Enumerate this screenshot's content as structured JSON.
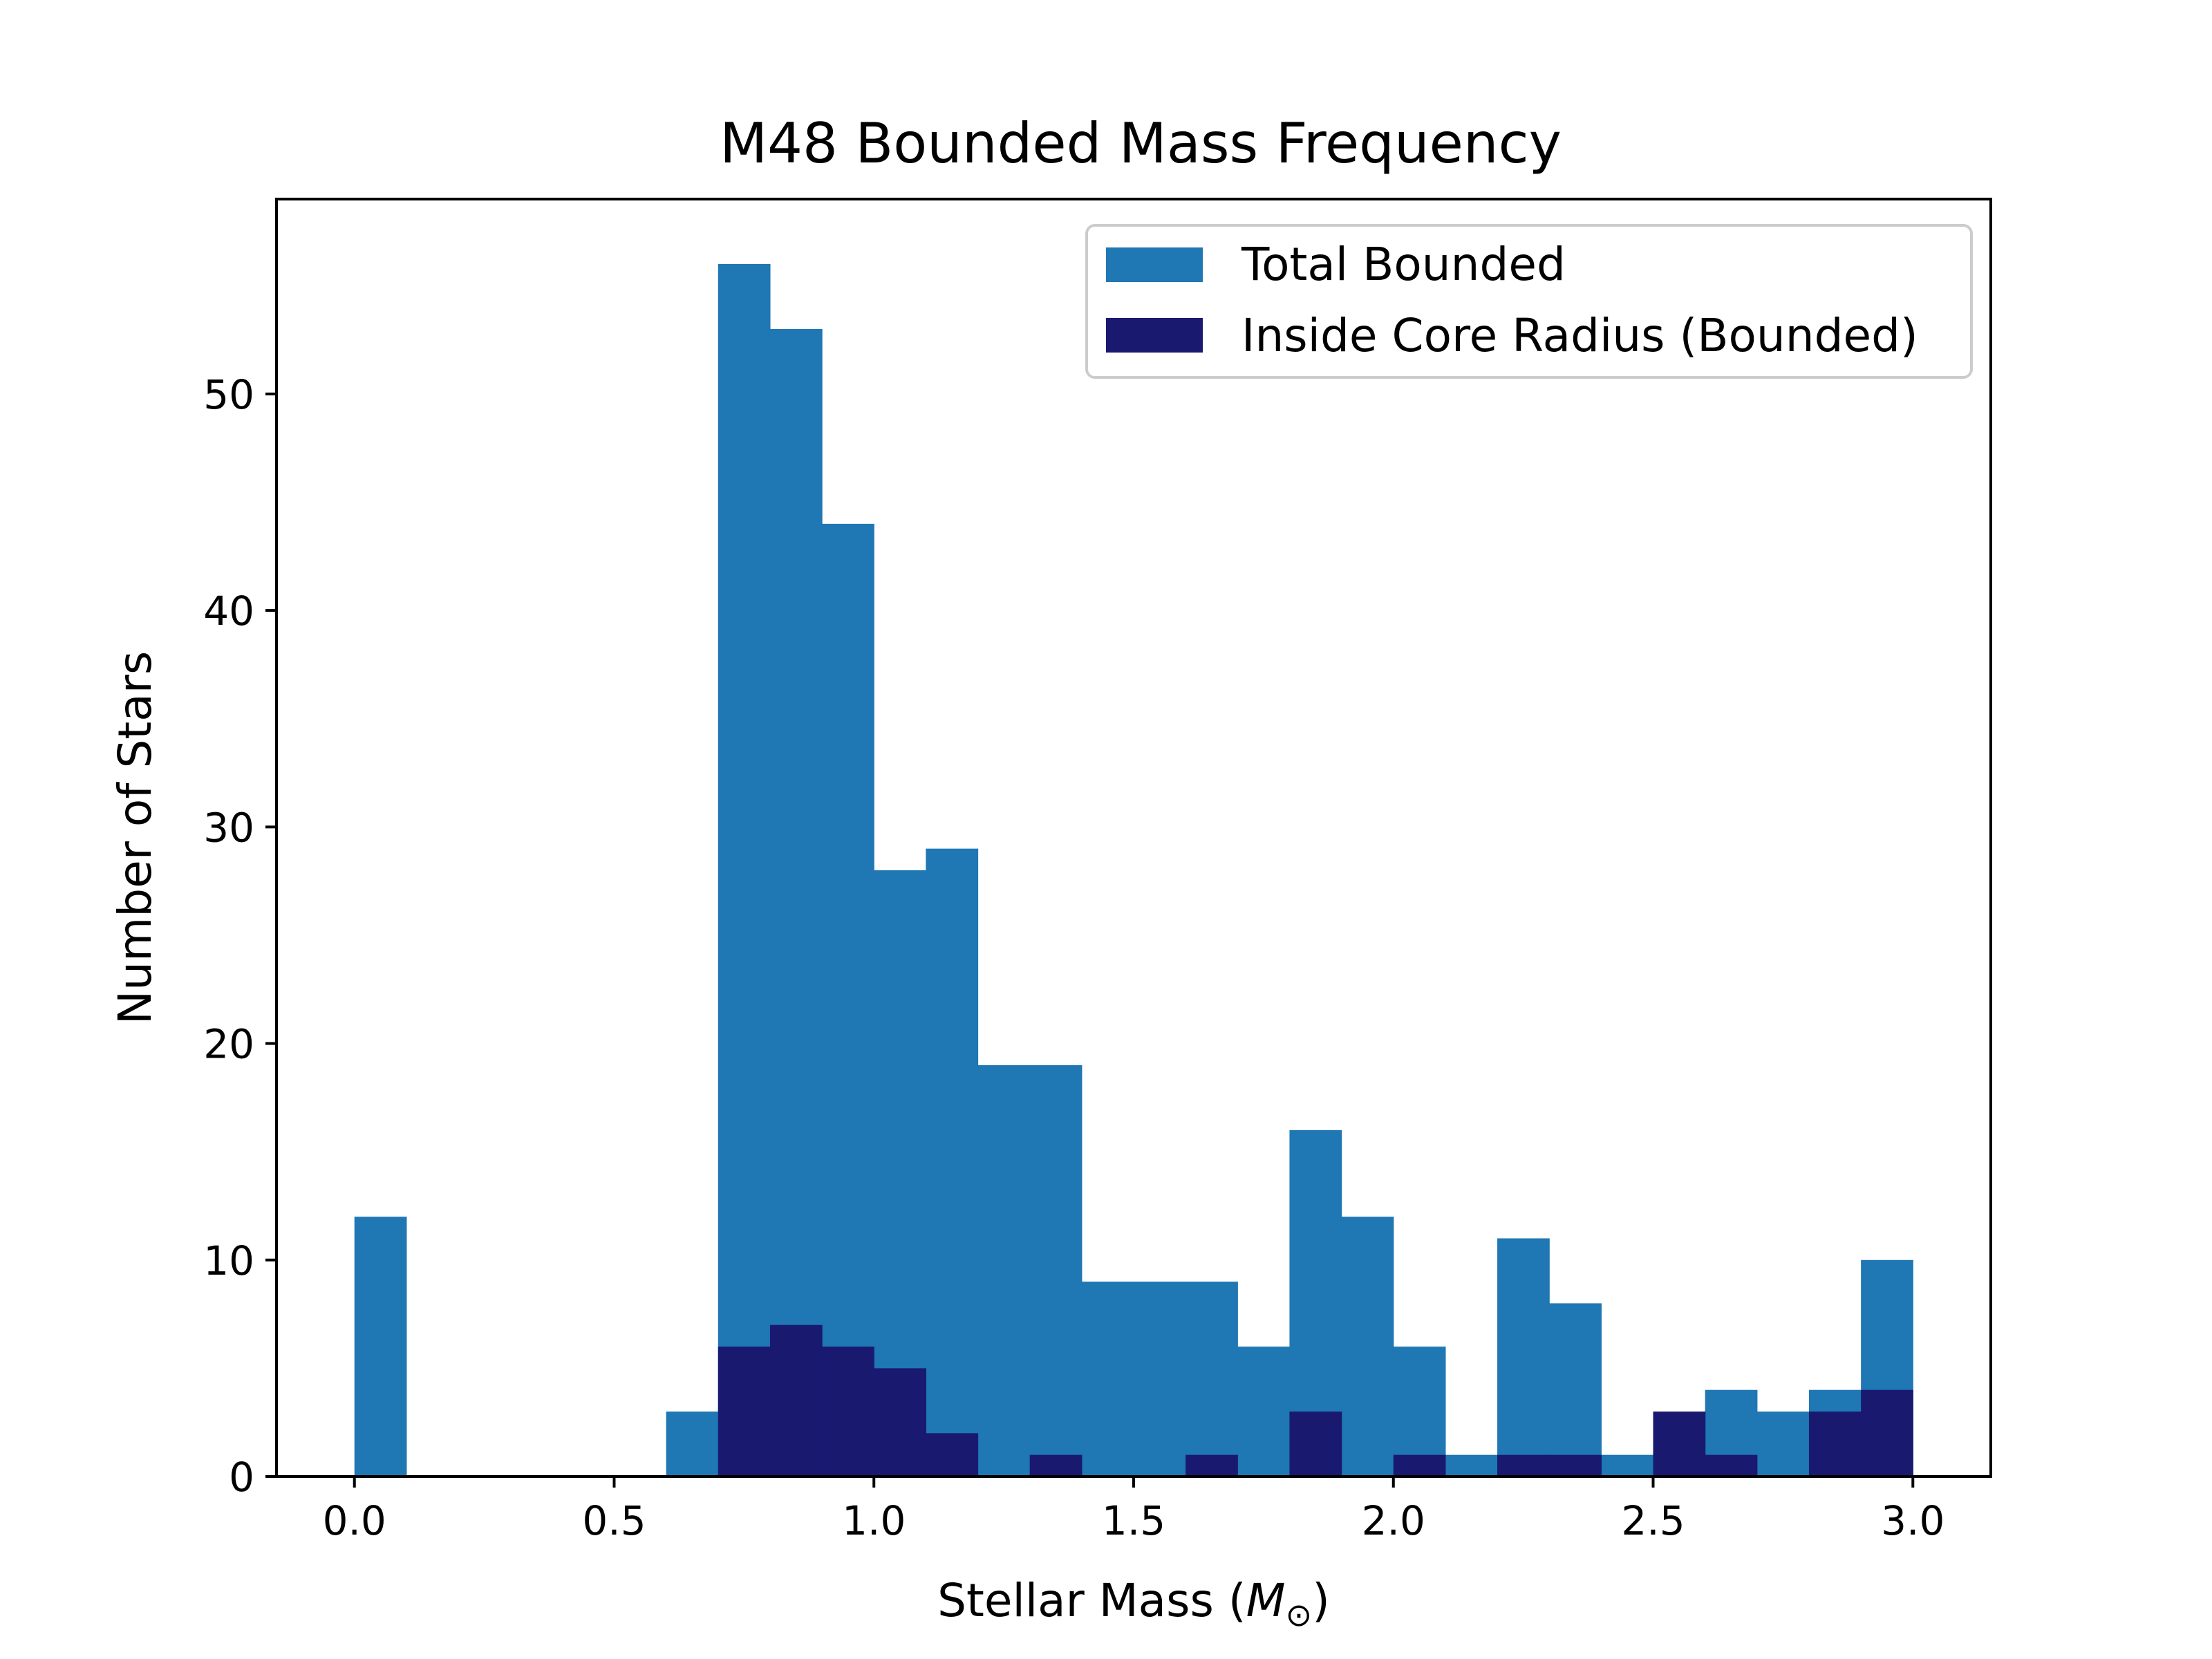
{
  "chart_data": {
    "type": "bar",
    "title": "M48 Bounded Mass Frequency",
    "xlabel": "Stellar Mass (",
    "xlabel_symbol": "M",
    "xlabel_subscript": "⊙",
    "xlabel_close": ")",
    "ylabel": "Number of Stars",
    "xlim": [
      -0.15,
      3.15
    ],
    "ylim": [
      0,
      59
    ],
    "xticks": [
      0.0,
      0.5,
      1.0,
      1.5,
      2.0,
      2.5,
      3.0
    ],
    "xtick_labels": [
      "0.0",
      "0.5",
      "1.0",
      "1.5",
      "2.0",
      "2.5",
      "3.0"
    ],
    "yticks": [
      0,
      10,
      20,
      30,
      40,
      50
    ],
    "ytick_labels": [
      "0",
      "10",
      "20",
      "30",
      "40",
      "50"
    ],
    "grid": false,
    "legend_position": "top-right",
    "bin_edges": [
      0.0,
      0.1,
      0.2,
      0.3,
      0.4,
      0.5,
      0.6,
      0.7,
      0.8,
      0.9,
      1.0,
      1.1,
      1.2,
      1.3,
      1.4,
      1.5,
      1.6,
      1.7,
      1.8,
      1.9,
      2.0,
      2.1,
      2.2,
      2.3,
      2.4,
      2.5,
      2.6,
      2.7,
      2.8,
      2.9,
      3.0
    ],
    "series": [
      {
        "name": "Total Bounded",
        "color": "#1f77b4",
        "values": [
          12,
          0,
          0,
          0,
          0,
          0,
          3,
          56,
          53,
          44,
          28,
          29,
          19,
          19,
          9,
          9,
          9,
          6,
          16,
          12,
          6,
          1,
          11,
          8,
          1,
          3,
          4,
          3,
          4,
          10
        ]
      },
      {
        "name": "Inside Core Radius (Bounded)",
        "color": "#191970",
        "values": [
          0,
          0,
          0,
          0,
          0,
          0,
          0,
          6,
          7,
          6,
          5,
          2,
          0,
          1,
          0,
          0,
          1,
          0,
          3,
          0,
          1,
          0,
          1,
          1,
          0,
          3,
          1,
          0,
          3,
          4
        ]
      }
    ]
  }
}
